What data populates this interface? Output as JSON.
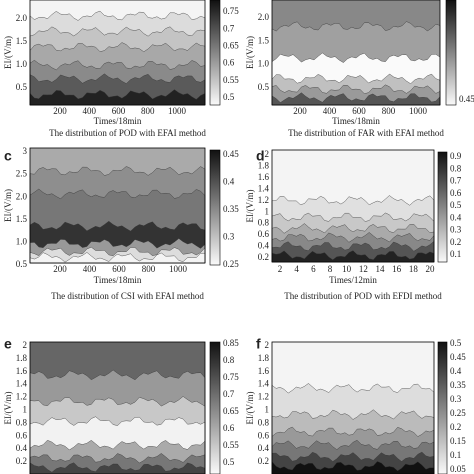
{
  "panels": [
    {
      "y_axis_label": "EI/(V/m)",
      "x_axis_label": "Times/18min",
      "caption": "The distribution of POD with EFAI method",
      "yticks": [
        "2.0",
        "1.5",
        "1.0",
        "0.5"
      ],
      "xticks": [
        "200",
        "400",
        "600",
        "800",
        "1000"
      ],
      "colorbar_ticks": [
        "0.75",
        "0.7",
        "0.65",
        "0.6",
        "0.55",
        "0.5"
      ]
    },
    {
      "y_axis_label": "EI/(V/m)",
      "x_axis_label": "Times/18min",
      "caption": "The distribution of FAR with EFAI method",
      "yticks": [
        "2.0",
        "1.5",
        "1.0",
        "0.5"
      ],
      "xticks": [
        "200",
        "400",
        "600",
        "800",
        "1000"
      ],
      "colorbar_ticks": [
        "0.45"
      ]
    },
    {
      "label": "c",
      "y_axis_label": "EI/(V/m)",
      "x_axis_label": "Times/18min",
      "caption": "The distribution of CSI with EFAI method",
      "yticks": [
        "3",
        "2.5",
        "2.0",
        "1.5",
        "1.0",
        "0.5"
      ],
      "xticks": [
        "200",
        "400",
        "600",
        "800",
        "1000"
      ],
      "colorbar_ticks": [
        "0.45",
        "0.4",
        "0.35",
        "0.3",
        "0.25"
      ]
    },
    {
      "label": "d",
      "y_axis_label": "EI/(V/m)",
      "x_axis_label": "Times/12min",
      "caption": "The distribution of POD with EFDI method",
      "yticks": [
        "2",
        "1.8",
        "1.6",
        "1.4",
        "1.2",
        "1",
        "0.8",
        "0.6",
        "0.4",
        "0.2"
      ],
      "xticks": [
        "2",
        "4",
        "6",
        "8",
        "10",
        "12",
        "14",
        "16",
        "18",
        "20"
      ],
      "colorbar_ticks": [
        "0.9",
        "0.8",
        "0.7",
        "0.6",
        "0.5",
        "0.4",
        "0.3",
        "0.2",
        "0.1"
      ]
    },
    {
      "label": "e",
      "y_axis_label": "EI/(V/m)",
      "yticks": [
        "2",
        "1.8",
        "1.6",
        "1.4",
        "1.2",
        "1",
        "0.8",
        "0.6",
        "0.4",
        "0.2"
      ],
      "colorbar_ticks": [
        "0.85",
        "0.8",
        "0.75",
        "0.7",
        "0.65",
        "0.6",
        "0.55",
        "0.5"
      ]
    },
    {
      "label": "f",
      "y_axis_label": "EI/(V/m)",
      "yticks": [
        "2",
        "1.8",
        "1.6",
        "1.4",
        "1.2",
        "1",
        "0.8",
        "0.6",
        "0.4",
        "0.2"
      ],
      "colorbar_ticks": [
        "0.5",
        "0.45",
        "0.4",
        "0.35",
        "0.3",
        "0.25",
        "0.2",
        "0.15",
        "0.1",
        "0.05"
      ]
    }
  ]
}
